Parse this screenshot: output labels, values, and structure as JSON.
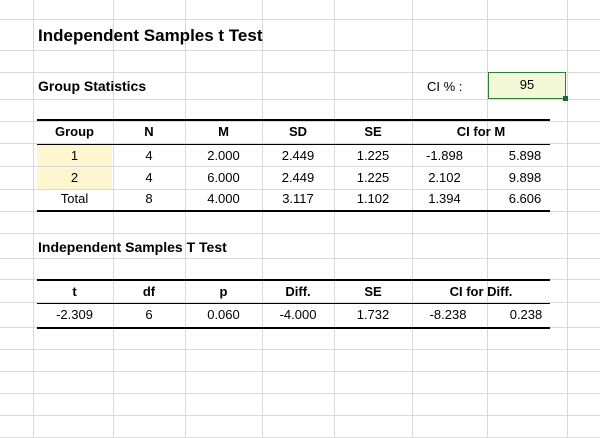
{
  "title": "Independent Samples t Test",
  "group_statistics": {
    "heading": "Group Statistics",
    "ci_label": "CI % :",
    "ci_value": "95",
    "headers": [
      "Group",
      "N",
      "M",
      "SD",
      "SE",
      "CI for M"
    ],
    "rows": [
      {
        "group": "1",
        "n": "4",
        "m": "2.000",
        "sd": "2.449",
        "se": "1.225",
        "ci_low": "-1.898",
        "ci_high": "5.898"
      },
      {
        "group": "2",
        "n": "4",
        "m": "6.000",
        "sd": "2.449",
        "se": "1.225",
        "ci_low": "2.102",
        "ci_high": "9.898"
      },
      {
        "group": "Total",
        "n": "8",
        "m": "4.000",
        "sd": "3.117",
        "se": "1.102",
        "ci_low": "1.394",
        "ci_high": "6.606"
      }
    ]
  },
  "t_test": {
    "heading": "Independent Samples T Test",
    "headers": [
      "t",
      "df",
      "p",
      "Diff.",
      "SE",
      "CI for Diff."
    ],
    "row": {
      "t": "-2.309",
      "df": "6",
      "p": "0.060",
      "diff": "-4.000",
      "se": "1.732",
      "ci_low": "-8.238",
      "ci_high": "0.238"
    }
  },
  "colors": {
    "highlight": "#fdf7d0",
    "input_fill": "#f3f8d6",
    "input_border": "#2e7d32",
    "gridline": "#d9d9d9"
  }
}
